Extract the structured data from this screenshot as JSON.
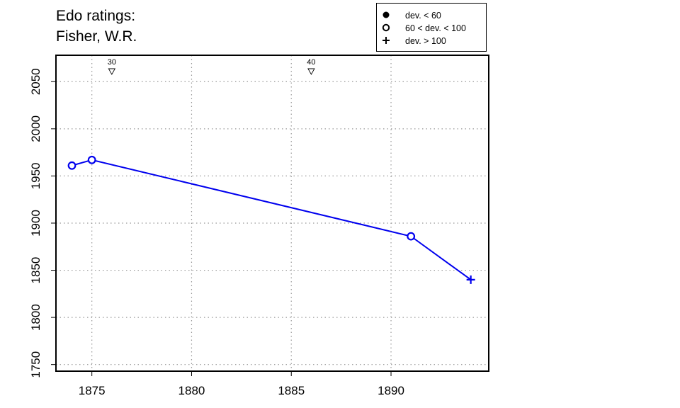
{
  "title_line1": "Edo ratings:",
  "title_line2": "Fisher, W.R.",
  "legend": [
    {
      "symbol": "filled-circle",
      "label": "dev. < 60"
    },
    {
      "symbol": "open-circle",
      "label": "60 < dev. < 100"
    },
    {
      "symbol": "plus",
      "label": "dev. > 100"
    }
  ],
  "chart_data": {
    "type": "line",
    "xlim": [
      1873.2,
      1894.9
    ],
    "ylim": [
      1743,
      2078
    ],
    "xticks": [
      1875,
      1880,
      1885,
      1890
    ],
    "yticks": [
      1750,
      1800,
      1850,
      1900,
      1950,
      2000,
      2050
    ],
    "grid": "dotted",
    "line_color": "#0000ee",
    "series": [
      {
        "points": [
          {
            "x": 1874,
            "y": 1961,
            "marker": "open-circle"
          },
          {
            "x": 1875,
            "y": 1967,
            "marker": "open-circle"
          },
          {
            "x": 1891,
            "y": 1886,
            "marker": "open-circle"
          },
          {
            "x": 1894,
            "y": 1840,
            "marker": "plus"
          }
        ]
      }
    ],
    "annotations": [
      {
        "x": 1876,
        "label": "30",
        "marker": "down-triangle"
      },
      {
        "x": 1886,
        "label": "40",
        "marker": "down-triangle"
      }
    ]
  }
}
